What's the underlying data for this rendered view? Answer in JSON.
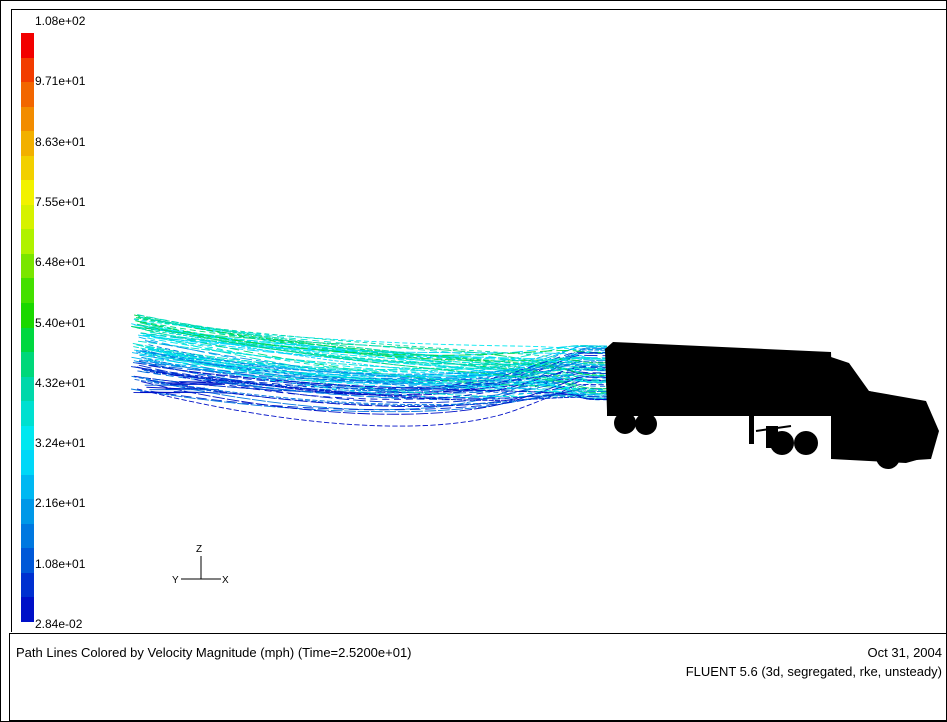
{
  "legend": {
    "ticks": [
      "1.08e+02",
      "9.71e+01",
      "8.63e+01",
      "7.55e+01",
      "6.48e+01",
      "5.40e+01",
      "4.32e+01",
      "3.24e+01",
      "2.16e+01",
      "1.08e+01",
      "2.84e-02"
    ],
    "colors": [
      "#f20000",
      "#f23c00",
      "#f26600",
      "#f28c00",
      "#f2b000",
      "#f2d000",
      "#f2f200",
      "#d6f200",
      "#b0f200",
      "#7ae600",
      "#44e000",
      "#1ad800",
      "#00d840",
      "#00d87a",
      "#00d8aa",
      "#00e0d0",
      "#00e8f0",
      "#00d8f8",
      "#00b8f2",
      "#0098e8",
      "#0078e0",
      "#0058d8",
      "#0030d0",
      "#0010c8"
    ]
  },
  "axes": {
    "z": "Z",
    "y": "Y",
    "x": "X"
  },
  "caption": {
    "title": "Path Lines Colored by Velocity Magnitude (mph)  (Time=2.5200e+01)",
    "date": "Oct 31, 2004",
    "solver": "FLUENT 5.6 (3d, segregated, rke, unsteady)"
  }
}
